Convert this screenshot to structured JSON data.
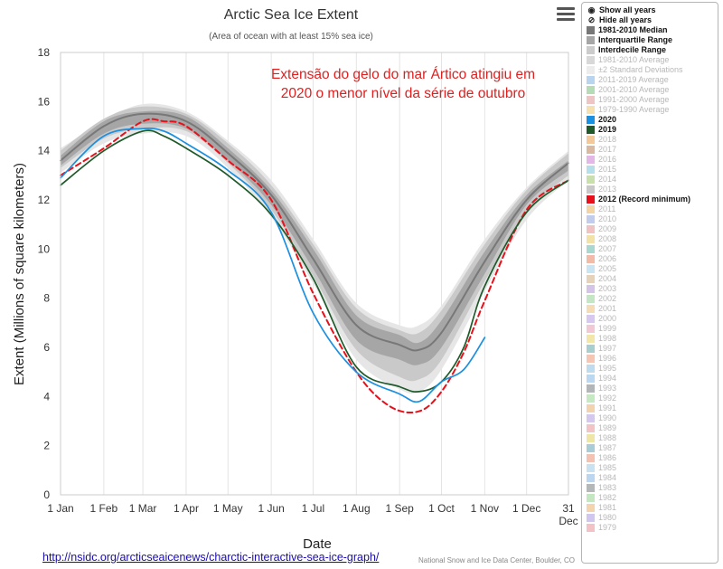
{
  "chart_data": {
    "type": "line",
    "title": "Arctic Sea Ice Extent",
    "subtitle": "(Area of ocean with at least 15% sea ice)",
    "xlabel": "Date",
    "ylabel": "Extent (Millions of square kilometers)",
    "ylim": [
      0,
      18
    ],
    "yticks": [
      0,
      2,
      4,
      6,
      8,
      10,
      12,
      14,
      16,
      18
    ],
    "xlim": [
      1,
      365
    ],
    "xticks": [
      {
        "day": 1,
        "label": "1 Jan"
      },
      {
        "day": 32,
        "label": "1 Feb"
      },
      {
        "day": 60,
        "label": "1 Mar"
      },
      {
        "day": 91,
        "label": "1 Apr"
      },
      {
        "day": 121,
        "label": "1 May"
      },
      {
        "day": 152,
        "label": "1 Jun"
      },
      {
        "day": 182,
        "label": "1 Jul"
      },
      {
        "day": 213,
        "label": "1 Aug"
      },
      {
        "day": 244,
        "label": "1 Sep"
      },
      {
        "day": 274,
        "label": "1 Oct"
      },
      {
        "day": 305,
        "label": "1 Nov"
      },
      {
        "day": 335,
        "label": "1 Dec"
      },
      {
        "day": 365,
        "label": "31"
      }
    ],
    "xtick_extra": "Dec",
    "grid": "vertical",
    "annotation": [
      "Extensão do gelo do mar Ártico atingiu em",
      "2020 o menor nível da série de outubro"
    ],
    "credit": "National Snow and Ice Data Center, Boulder, CO",
    "day_axis": [
      1,
      32,
      60,
      91,
      121,
      152,
      182,
      213,
      244,
      258,
      274,
      305,
      335,
      365
    ],
    "bands": [
      {
        "name": "±2 Standard Deviations",
        "color": "#e6e6e6",
        "lower": [
          13.1,
          14.3,
          14.7,
          14.6,
          13.3,
          11.3,
          8.6,
          5.5,
          4.3,
          4.2,
          5.1,
          8.3,
          11.2,
          12.8
        ],
        "upper": [
          14.1,
          15.2,
          15.9,
          15.6,
          14.4,
          12.8,
          10.4,
          7.8,
          6.9,
          6.9,
          7.7,
          10.4,
          12.5,
          14.0
        ]
      },
      {
        "name": "Interdecile Range",
        "color": "#c9c9c9",
        "lower": [
          13.3,
          14.5,
          14.9,
          14.8,
          13.5,
          11.6,
          8.9,
          5.9,
          4.8,
          4.7,
          5.5,
          8.7,
          11.5,
          13.0
        ],
        "upper": [
          14.0,
          15.3,
          15.8,
          15.5,
          14.3,
          12.6,
          10.2,
          7.6,
          6.7,
          6.6,
          7.5,
          10.2,
          12.4,
          13.9
        ]
      },
      {
        "name": "Interquartile Range",
        "color": "#a6a6a6",
        "lower": [
          13.4,
          14.7,
          15.1,
          14.9,
          13.6,
          11.8,
          9.2,
          6.3,
          5.5,
          5.3,
          6.0,
          9.0,
          11.8,
          13.2
        ],
        "upper": [
          13.8,
          15.2,
          15.6,
          15.4,
          14.1,
          12.4,
          10.0,
          7.3,
          6.5,
          6.2,
          7.1,
          9.9,
          12.2,
          13.6
        ]
      }
    ],
    "series": [
      {
        "name": "1981-2010 Median",
        "color": "#787878",
        "dash": "",
        "width": 2,
        "x": [
          1,
          32,
          60,
          91,
          121,
          152,
          182,
          213,
          244,
          258,
          274,
          305,
          335,
          365
        ],
        "values": [
          13.6,
          15.0,
          15.5,
          15.2,
          13.9,
          12.2,
          9.6,
          6.9,
          6.1,
          5.9,
          6.6,
          9.5,
          12.0,
          13.5
        ]
      },
      {
        "name": "2012 (Record minimum)",
        "color": "#e8101a",
        "dash": "6,4",
        "width": 2,
        "x": [
          1,
          32,
          60,
          75,
          91,
          121,
          152,
          182,
          213,
          237,
          258,
          274,
          290,
          305,
          335,
          365
        ],
        "values": [
          13.0,
          14.1,
          15.2,
          15.2,
          15.0,
          13.6,
          12.0,
          8.2,
          5.0,
          3.6,
          3.4,
          4.2,
          5.8,
          7.9,
          11.6,
          12.8
        ]
      },
      {
        "name": "2019",
        "color": "#1f5a2a",
        "dash": "",
        "width": 1.7,
        "x": [
          1,
          32,
          60,
          75,
          91,
          121,
          152,
          182,
          213,
          244,
          258,
          274,
          290,
          305,
          335,
          365
        ],
        "values": [
          12.6,
          14.0,
          14.8,
          14.6,
          14.1,
          13.0,
          11.4,
          8.8,
          5.2,
          4.4,
          4.2,
          4.6,
          6.0,
          8.5,
          11.5,
          12.8
        ]
      },
      {
        "name": "2020",
        "color": "#1b8fe0",
        "dash": "",
        "width": 1.7,
        "x": [
          1,
          32,
          60,
          75,
          91,
          121,
          152,
          182,
          213,
          244,
          258,
          274,
          290,
          305
        ],
        "values": [
          12.9,
          14.6,
          14.9,
          14.8,
          14.3,
          13.2,
          11.5,
          7.4,
          5.0,
          4.1,
          3.8,
          4.6,
          5.1,
          6.4
        ]
      }
    ]
  },
  "source_link": "http://nsidc.org/arcticseaicenews/charctic-interactive-sea-ice-graph/",
  "menu_icon": "hamburger-menu-icon",
  "legend": {
    "show_all": "Show all years",
    "hide_all": "Hide all years",
    "items": [
      {
        "label": "1981-2010 Median",
        "color": "#777777",
        "on": true
      },
      {
        "label": "Interquartile Range",
        "color": "#a6a6a6",
        "on": true
      },
      {
        "label": "Interdecile Range",
        "color": "#cccccc",
        "on": true
      },
      {
        "label": "1981-2010 Average",
        "color": "#d8d8d8",
        "on": false
      },
      {
        "label": "±2 Standard Deviations",
        "color": "#ececec",
        "on": false
      },
      {
        "label": "2011-2019 Average",
        "color": "#b9d4ee",
        "on": false
      },
      {
        "label": "2001-2010 Average",
        "color": "#b6dcb6",
        "on": false
      },
      {
        "label": "1991-2000 Average",
        "color": "#eec5c5",
        "on": false
      },
      {
        "label": "1979-1990 Average",
        "color": "#f5e0b0",
        "on": false
      },
      {
        "label": "2020",
        "color": "#1b8fe0",
        "on": true
      },
      {
        "label": "2019",
        "color": "#1f5a2a",
        "on": true
      },
      {
        "label": "2018",
        "color": "#f3c99c",
        "on": false
      },
      {
        "label": "2017",
        "color": "#d9b9a0",
        "on": false
      },
      {
        "label": "2016",
        "color": "#e3b8e6",
        "on": false
      },
      {
        "label": "2015",
        "color": "#b5e0ea",
        "on": false
      },
      {
        "label": "2014",
        "color": "#c9dfae",
        "on": false
      },
      {
        "label": "2013",
        "color": "#c8c8c8",
        "on": false
      },
      {
        "label": "2012 (Record minimum)",
        "color": "#e8101a",
        "on": true
      },
      {
        "label": "2011",
        "color": "#f3d4a4",
        "on": false
      },
      {
        "label": "2010",
        "color": "#c2cdec",
        "on": false
      },
      {
        "label": "2009",
        "color": "#f0c2c2",
        "on": false
      },
      {
        "label": "2008",
        "color": "#f3e2a8",
        "on": false
      },
      {
        "label": "2007",
        "color": "#a9d8d0",
        "on": false
      },
      {
        "label": "2006",
        "color": "#f2bba8",
        "on": false
      },
      {
        "label": "2005",
        "color": "#c9e4f2",
        "on": false
      },
      {
        "label": "2004",
        "color": "#e6d2b8",
        "on": false
      },
      {
        "label": "2003",
        "color": "#d4c4e8",
        "on": false
      },
      {
        "label": "2002",
        "color": "#c4e6c4",
        "on": false
      },
      {
        "label": "2001",
        "color": "#f5dcb4",
        "on": false
      },
      {
        "label": "2000",
        "color": "#d6c8ee",
        "on": false
      },
      {
        "label": "1999",
        "color": "#f2c8d4",
        "on": false
      },
      {
        "label": "1998",
        "color": "#f2e6a8",
        "on": false
      },
      {
        "label": "1997",
        "color": "#a8cfd0",
        "on": false
      },
      {
        "label": "1996",
        "color": "#f5c6b4",
        "on": false
      },
      {
        "label": "1995",
        "color": "#bfdcee",
        "on": false
      },
      {
        "label": "1994",
        "color": "#bcd8f0",
        "on": false
      },
      {
        "label": "1993",
        "color": "#b2b6b8",
        "on": false
      },
      {
        "label": "1992",
        "color": "#c6e8c2",
        "on": false
      },
      {
        "label": "1991",
        "color": "#f3d2ae",
        "on": false
      },
      {
        "label": "1990",
        "color": "#d4c8ee",
        "on": false
      },
      {
        "label": "1989",
        "color": "#f2c4c8",
        "on": false
      },
      {
        "label": "1988",
        "color": "#eee6a4",
        "on": false
      },
      {
        "label": "1987",
        "color": "#a8cdd6",
        "on": false
      },
      {
        "label": "1986",
        "color": "#f4c2b2",
        "on": false
      },
      {
        "label": "1985",
        "color": "#c8e2f2",
        "on": false
      },
      {
        "label": "1984",
        "color": "#bcd6f0",
        "on": false
      },
      {
        "label": "1983",
        "color": "#b4b8b8",
        "on": false
      },
      {
        "label": "1982",
        "color": "#c4e6c0",
        "on": false
      },
      {
        "label": "1981",
        "color": "#f4d4ac",
        "on": false
      },
      {
        "label": "1980",
        "color": "#d0c6ee",
        "on": false
      },
      {
        "label": "1979",
        "color": "#f2c2c6",
        "on": false
      }
    ]
  }
}
